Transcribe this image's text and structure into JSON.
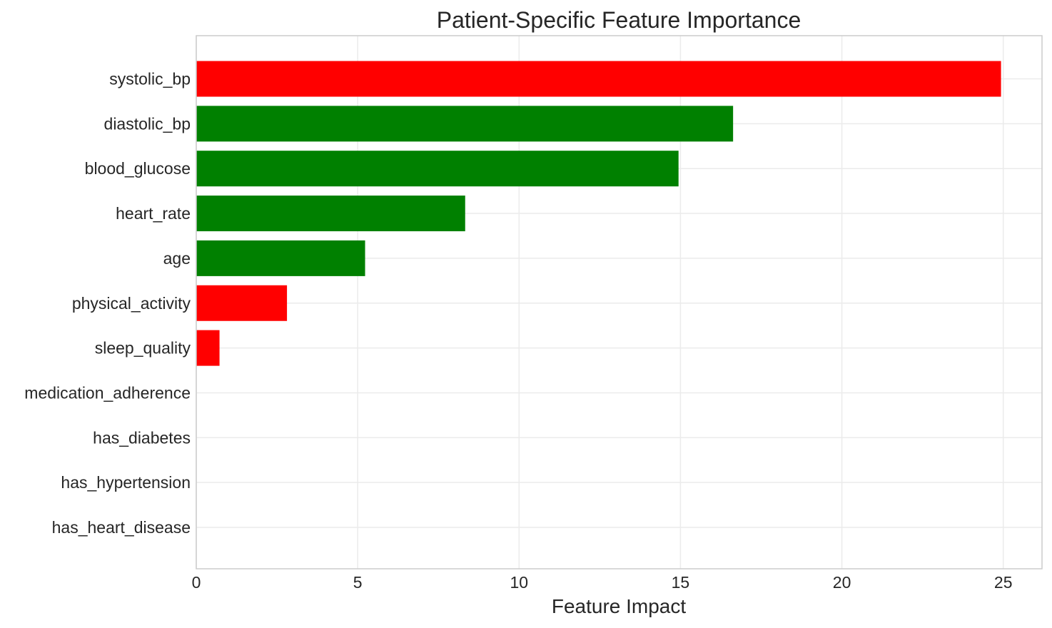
{
  "chart_data": {
    "type": "bar",
    "orientation": "horizontal",
    "title": "Patient-Specific Feature Importance",
    "xlabel": "Feature Impact",
    "ylabel": "",
    "xlim": [
      0,
      26.2
    ],
    "xticks": [
      0,
      5,
      10,
      15,
      20,
      25
    ],
    "grid": true,
    "categories": [
      "systolic_bp",
      "diastolic_bp",
      "blood_glucose",
      "heart_rate",
      "age",
      "physical_activity",
      "sleep_quality",
      "medication_adherence",
      "has_diabetes",
      "has_hypertension",
      "has_heart_disease"
    ],
    "values": [
      24.93,
      16.63,
      14.94,
      8.33,
      5.23,
      2.81,
      0.72,
      0,
      0,
      0,
      0
    ],
    "colors": [
      "#ff0000",
      "#008000",
      "#008000",
      "#008000",
      "#008000",
      "#ff0000",
      "#ff0000",
      "#ff0000",
      "#ff0000",
      "#ff0000",
      "#ff0000"
    ]
  }
}
